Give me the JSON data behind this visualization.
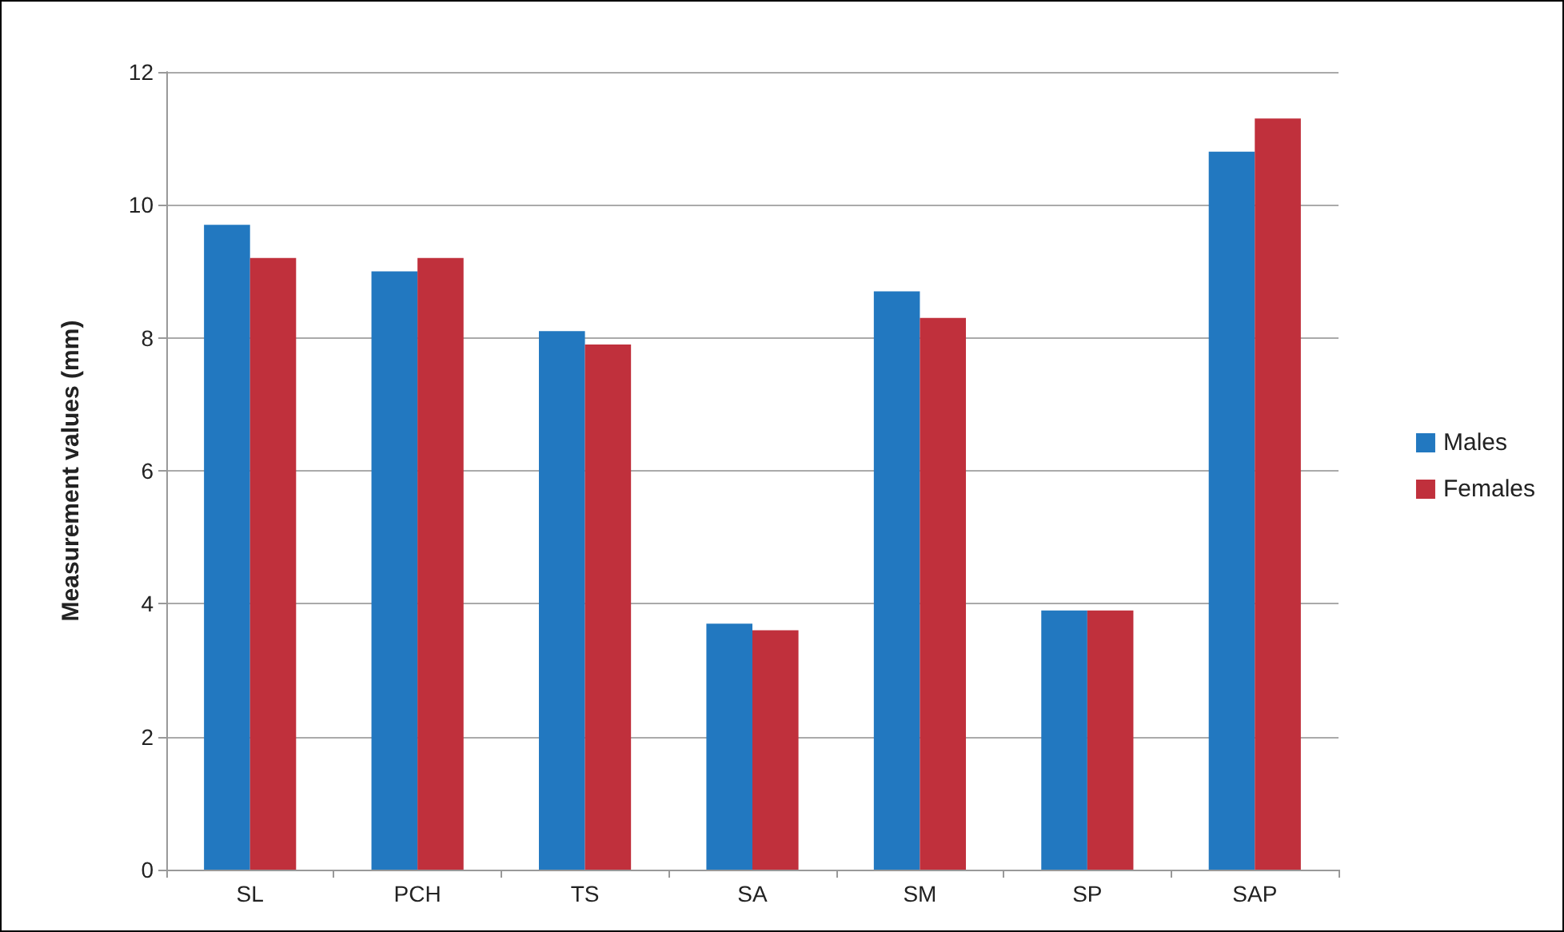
{
  "chart_data": {
    "type": "bar",
    "ylabel": "Measurement values (mm)",
    "categories": [
      "SL",
      "PCH",
      "TS",
      "SA",
      "SM",
      "SP",
      "SAP"
    ],
    "series": [
      {
        "name": "Males",
        "color": "#2278c0",
        "values": [
          9.7,
          9.0,
          8.1,
          3.7,
          8.7,
          3.9,
          10.8
        ]
      },
      {
        "name": "Females",
        "color": "#c0303c",
        "values": [
          9.2,
          9.2,
          7.9,
          3.6,
          8.3,
          3.9,
          11.3
        ]
      }
    ],
    "ylim": [
      0,
      12
    ],
    "yticks": [
      0,
      2,
      4,
      6,
      8,
      10,
      12
    ],
    "grid": "y",
    "legend": "right"
  }
}
